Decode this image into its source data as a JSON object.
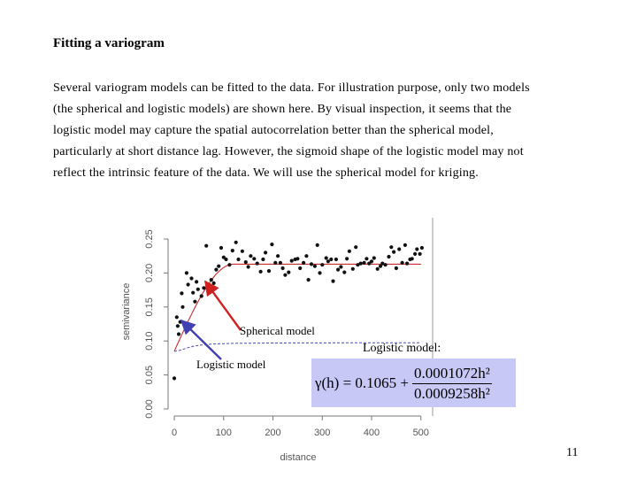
{
  "title": "Fitting a variogram",
  "paragraph_lines": [
    "Several variogram models can be fitted to the data. For illustration purpose, only two models",
    "(the spherical and logistic models) are shown here. By visual inspection, it seems that the",
    "logistic model may capture the spatial autocorrelation better than the spherical model,",
    "particularly at short distance lag. However, the sigmoid shape of the logistic model may not",
    "reflect the intrinsic feature of the data. We will use the spherical model for kriging."
  ],
  "annotations": {
    "spherical": "Spherical model",
    "logistic": "Logistic model",
    "logistic_formula_label": "Logistic model:"
  },
  "formula": {
    "lhs": "γ(h) = 0.1065 +",
    "numerator": "0.0001072h²",
    "denominator": "0.0009258h²"
  },
  "page_number": "11",
  "colors": {
    "spherical_line": "#cc2a2a",
    "logistic_line": "#4848b8",
    "spherical_arrow": "#d02020",
    "logistic_arrow": "#4040b0",
    "formula_bg": "#c7c8f5"
  },
  "chart_data": {
    "type": "scatter",
    "xlabel": "distance",
    "ylabel": "semivariance",
    "xlim": [
      -10,
      510
    ],
    "ylim": [
      0.0,
      0.26
    ],
    "xticks": [
      0,
      100,
      200,
      300,
      400,
      500
    ],
    "xtick_labels": [
      "0",
      "100",
      "200",
      "300",
      "400",
      "500"
    ],
    "yticks": [
      0.0,
      0.05,
      0.1,
      0.15,
      0.2,
      0.25
    ],
    "ytick_labels": [
      "0.00",
      "0.05",
      "0.10",
      "0.15",
      "0.20",
      "0.25"
    ],
    "points": [
      [
        0,
        0.045
      ],
      [
        5,
        0.135
      ],
      [
        7,
        0.122
      ],
      [
        9,
        0.11
      ],
      [
        12,
        0.128
      ],
      [
        15,
        0.17
      ],
      [
        17,
        0.15
      ],
      [
        22,
        0.125
      ],
      [
        25,
        0.2
      ],
      [
        28,
        0.183
      ],
      [
        35,
        0.192
      ],
      [
        38,
        0.171
      ],
      [
        42,
        0.158
      ],
      [
        45,
        0.187
      ],
      [
        48,
        0.176
      ],
      [
        55,
        0.166
      ],
      [
        60,
        0.178
      ],
      [
        65,
        0.24
      ],
      [
        68,
        0.181
      ],
      [
        75,
        0.19
      ],
      [
        80,
        0.185
      ],
      [
        85,
        0.205
      ],
      [
        90,
        0.21
      ],
      [
        95,
        0.237
      ],
      [
        100,
        0.223
      ],
      [
        105,
        0.22
      ],
      [
        112,
        0.212
      ],
      [
        118,
        0.233
      ],
      [
        125,
        0.245
      ],
      [
        130,
        0.22
      ],
      [
        138,
        0.232
      ],
      [
        145,
        0.216
      ],
      [
        150,
        0.209
      ],
      [
        155,
        0.225
      ],
      [
        162,
        0.221
      ],
      [
        168,
        0.214
      ],
      [
        175,
        0.202
      ],
      [
        180,
        0.22
      ],
      [
        185,
        0.23
      ],
      [
        192,
        0.203
      ],
      [
        198,
        0.242
      ],
      [
        205,
        0.215
      ],
      [
        210,
        0.225
      ],
      [
        215,
        0.215
      ],
      [
        220,
        0.207
      ],
      [
        225,
        0.197
      ],
      [
        232,
        0.201
      ],
      [
        238,
        0.218
      ],
      [
        245,
        0.22
      ],
      [
        250,
        0.221
      ],
      [
        255,
        0.207
      ],
      [
        262,
        0.215
      ],
      [
        268,
        0.225
      ],
      [
        272,
        0.19
      ],
      [
        278,
        0.213
      ],
      [
        285,
        0.21
      ],
      [
        290,
        0.241
      ],
      [
        295,
        0.2
      ],
      [
        300,
        0.212
      ],
      [
        308,
        0.222
      ],
      [
        312,
        0.217
      ],
      [
        318,
        0.22
      ],
      [
        322,
        0.188
      ],
      [
        328,
        0.22
      ],
      [
        332,
        0.205
      ],
      [
        338,
        0.209
      ],
      [
        345,
        0.201
      ],
      [
        350,
        0.221
      ],
      [
        355,
        0.232
      ],
      [
        362,
        0.206
      ],
      [
        368,
        0.238
      ],
      [
        372,
        0.212
      ],
      [
        378,
        0.214
      ],
      [
        385,
        0.215
      ],
      [
        390,
        0.221
      ],
      [
        395,
        0.214
      ],
      [
        400,
        0.217
      ],
      [
        405,
        0.222
      ],
      [
        412,
        0.206
      ],
      [
        418,
        0.21
      ],
      [
        422,
        0.214
      ],
      [
        428,
        0.212
      ],
      [
        435,
        0.224
      ],
      [
        440,
        0.238
      ],
      [
        445,
        0.231
      ],
      [
        450,
        0.207
      ],
      [
        456,
        0.235
      ],
      [
        462,
        0.215
      ],
      [
        468,
        0.241
      ],
      [
        472,
        0.214
      ],
      [
        478,
        0.22
      ],
      [
        482,
        0.221
      ],
      [
        488,
        0.228
      ],
      [
        492,
        0.235
      ],
      [
        498,
        0.228
      ],
      [
        502,
        0.237
      ]
    ],
    "spherical_model": {
      "nugget": 0.085,
      "sill": 0.213,
      "range": 120
    },
    "logistic_model": {
      "c0": 0.1065,
      "a": 0.0001072,
      "b": 0.0009258
    }
  }
}
